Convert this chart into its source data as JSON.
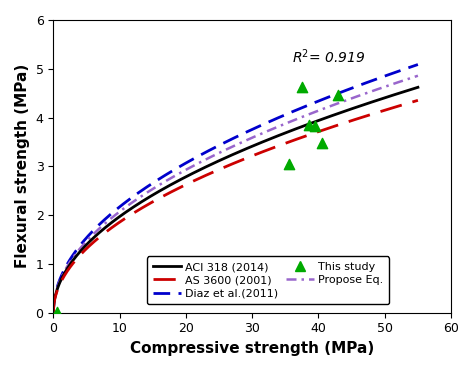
{
  "xlabel": "Compressive strength (MPa)",
  "ylabel": "Flexural strength (MPa)",
  "xlim": [
    0,
    60
  ],
  "ylim": [
    0,
    6
  ],
  "xticks": [
    0,
    10,
    20,
    30,
    40,
    50,
    60
  ],
  "yticks": [
    0,
    1,
    2,
    3,
    4,
    5,
    6
  ],
  "r2_text": "R$^2$= 0.919",
  "r2_x": 36,
  "r2_y": 5.25,
  "scatter_x": [
    0.5,
    35.5,
    37.5,
    38.5,
    39.5,
    40.5,
    43.0
  ],
  "scatter_y": [
    0.02,
    3.05,
    4.62,
    3.85,
    3.82,
    3.48,
    4.46
  ],
  "aci_coeff": 0.623,
  "as3600_coeff": 0.587,
  "diaz_coeff": 0.686,
  "propose_coeff": 0.655,
  "aci_color": "#000000",
  "aci_lw": 2.0,
  "aci_label": "ACI 318 (2014)",
  "as3600_color": "#cc0000",
  "as3600_lw": 2.0,
  "as3600_label": "AS 3600 (2001)",
  "diaz_color": "#0000cc",
  "diaz_lw": 2.0,
  "diaz_label": "Diaz et al.(2011)",
  "propose_color": "#9966cc",
  "propose_lw": 1.8,
  "propose_label": "Propose Eq.",
  "scatter_color": "#00aa00",
  "scatter_label": "This study",
  "background_color": "#ffffff",
  "legend_fontsize": 8.0,
  "xlabel_fontsize": 11,
  "ylabel_fontsize": 11
}
